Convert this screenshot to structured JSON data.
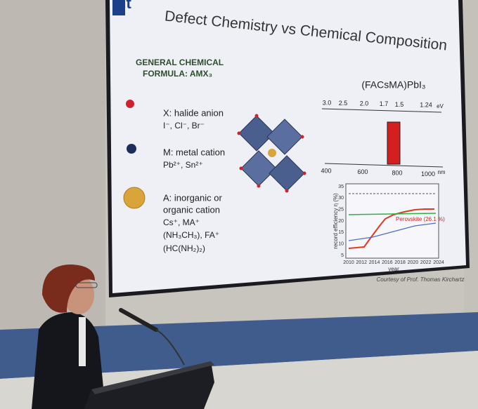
{
  "slide": {
    "logo": "ht",
    "title": "Defect Chemistry vs Chemical Composition",
    "formula_heading": [
      "GENERAL CHEMICAL",
      "FORMULA: AMX₃"
    ],
    "legend": [
      {
        "lines": [
          "X: halide anion",
          "I⁻, Cl⁻, Br⁻"
        ]
      },
      {
        "lines": [
          "M: metal cation",
          "Pb²⁺, Sn²⁺"
        ]
      },
      {
        "lines": [
          "A: inorganic or",
          "organic cation",
          "Cs⁺, MA⁺",
          "(NH₃CH₃), FA⁺",
          "(HC(NH₂)₂)"
        ]
      }
    ],
    "compound": "(FACsMA)PbI₃",
    "ev_ticks": [
      "3.0",
      "2.5",
      "2.0",
      "1.7",
      "1.5",
      "1.24"
    ],
    "ev_unit": "eV",
    "nm_ticks": [
      "400",
      "600",
      "800",
      "1000"
    ],
    "nm_unit": "nm",
    "inset": {
      "y_label": "record efficiency η (%)",
      "x_label": "year",
      "yticks": [
        "35",
        "30",
        "25",
        "20",
        "15",
        "10",
        "5"
      ],
      "xticks": [
        "2010",
        "2012",
        "2014",
        "2016",
        "2018",
        "2020",
        "2022",
        "2024"
      ],
      "annotation": "Perovskite (26.1 %)"
    },
    "credit": "Courtesy of Prof. Thomas Kirchartz"
  }
}
